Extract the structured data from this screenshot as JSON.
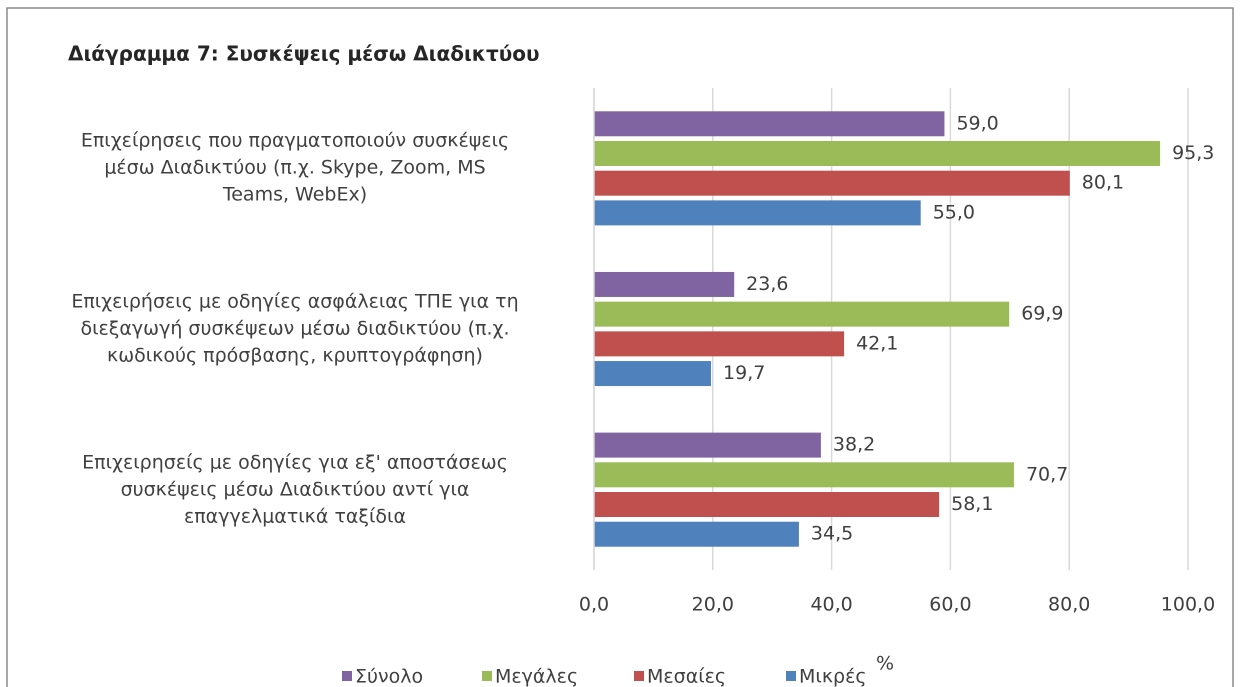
{
  "chart_data": {
    "type": "hbar",
    "title": "Διάγραμμα 7: Συσκέψεις μέσω Διαδικτύου",
    "xlabel": "%",
    "categories": [
      "Επιχείρησεις που πραγματοποιούν συσκέψεις\nμέσω Διαδικτύου (π.χ. Skype, Zoom, MS\nTeams, WebEx)",
      "Επιχειρήσεις με οδηγίες ασφάλειας ΤΠΕ για τη\nδιεξαγωγή  συσκέψεων μέσω διαδικτύου (π.χ.\nκωδικούς  πρόσβασης, κρυπτογράφηση)",
      "Επιχειρησείς με οδηγίες για εξ' αποστάσεως\nσυσκέψεις μέσω Διαδικτύου αντί για\nεπαγγελματικά ταξίδια"
    ],
    "series": [
      {
        "name": "Σύνολο",
        "color": "#8064a2",
        "values": [
          59.0,
          23.6,
          38.2
        ],
        "value_labels": [
          "59,0",
          "23,6",
          "38,2"
        ]
      },
      {
        "name": "Μεγάλες",
        "color": "#9bbb59",
        "values": [
          95.3,
          69.9,
          70.7
        ],
        "value_labels": [
          "95,3",
          "69,9",
          "70,7"
        ]
      },
      {
        "name": "Μεσαίες",
        "color": "#c0504d",
        "values": [
          80.1,
          42.1,
          58.1
        ],
        "value_labels": [
          "80,1",
          "42,1",
          "58,1"
        ]
      },
      {
        "name": "Μικρές",
        "color": "#4f81bd",
        "values": [
          55.0,
          19.7,
          34.5
        ],
        "value_labels": [
          "55,0",
          "19,7",
          "34,5"
        ]
      }
    ],
    "xlim": [
      0,
      100
    ],
    "xticks": [
      {
        "value": 0,
        "label": "0,0"
      },
      {
        "value": 20,
        "label": "20,0"
      },
      {
        "value": 40,
        "label": "40,0"
      },
      {
        "value": 60,
        "label": "60,0"
      },
      {
        "value": 80,
        "label": "80,0"
      },
      {
        "value": 100,
        "label": "100,0"
      }
    ],
    "grid": true,
    "legend": "bottom"
  }
}
